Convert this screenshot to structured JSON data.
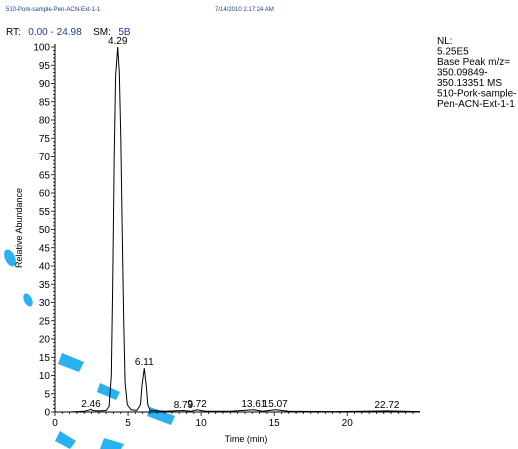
{
  "header": {
    "filename": "510-Pork-sample-Pen-ACN-Ext-1-1",
    "datetime": "7/14/2010 2:17:24 AM"
  },
  "rt_line": {
    "rt_label": "RT:",
    "rt_range": "0.00 - 24.98",
    "sm_label": "SM:",
    "sm_value": "5B"
  },
  "info_block": [
    "NL:",
    "5.25E5",
    "Base Peak m/z=",
    "350.09849-",
    "350.13351  MS",
    "510-Pork-sample-",
    "Pen-ACN-Ext-1-1"
  ],
  "colors": {
    "header_text": "#1f3b9a",
    "trace": "#000000",
    "watermark": "#14a9f0"
  },
  "chart_data": {
    "type": "line",
    "title": "",
    "xlabel": "Time (min)",
    "ylabel": "Relative Abundance",
    "xlim": [
      0,
      24.98
    ],
    "ylim": [
      0,
      100
    ],
    "x_ticks": [
      0,
      5,
      10,
      15,
      20
    ],
    "y_ticks": [
      0,
      5,
      10,
      15,
      20,
      25,
      30,
      35,
      40,
      45,
      50,
      55,
      60,
      65,
      70,
      75,
      80,
      85,
      90,
      95,
      100
    ],
    "peak_labels": [
      {
        "rt": "4.29",
        "x": 4.29,
        "y": 100
      },
      {
        "rt": "6.11",
        "x": 6.11,
        "y": 12
      },
      {
        "rt": "2.46",
        "x": 2.46,
        "y": 0.6
      },
      {
        "rt": "8.79",
        "x": 8.79,
        "y": 0.3
      },
      {
        "rt": "9.72",
        "x": 9.72,
        "y": 0.6
      },
      {
        "rt": "13.61",
        "x": 13.61,
        "y": 0.6
      },
      {
        "rt": "15.07",
        "x": 15.07,
        "y": 0.6
      },
      {
        "rt": "22.72",
        "x": 22.72,
        "y": 0.3
      }
    ],
    "series": [
      {
        "values": [
          [
            0,
            0
          ],
          [
            1.0,
            0
          ],
          [
            2.0,
            0.2
          ],
          [
            2.3,
            0.5
          ],
          [
            2.46,
            0.7
          ],
          [
            2.6,
            0.4
          ],
          [
            3.0,
            0.3
          ],
          [
            3.5,
            0.4
          ],
          [
            3.7,
            1.5
          ],
          [
            3.85,
            10
          ],
          [
            3.95,
            35
          ],
          [
            4.05,
            70
          ],
          [
            4.15,
            92
          ],
          [
            4.29,
            100
          ],
          [
            4.4,
            93
          ],
          [
            4.5,
            75
          ],
          [
            4.6,
            50
          ],
          [
            4.7,
            25
          ],
          [
            4.8,
            8
          ],
          [
            4.95,
            2
          ],
          [
            5.2,
            0.6
          ],
          [
            5.6,
            0.4
          ],
          [
            5.85,
            2
          ],
          [
            5.95,
            7
          ],
          [
            6.11,
            12
          ],
          [
            6.25,
            7
          ],
          [
            6.35,
            2
          ],
          [
            6.5,
            0.5
          ],
          [
            7.5,
            0.2
          ],
          [
            8.79,
            0.4
          ],
          [
            9.3,
            0.2
          ],
          [
            9.72,
            0.6
          ],
          [
            10.3,
            0.2
          ],
          [
            12.0,
            0.2
          ],
          [
            13.61,
            0.6
          ],
          [
            14.2,
            0.2
          ],
          [
            15.07,
            0.6
          ],
          [
            16.0,
            0.2
          ],
          [
            19.0,
            0.1
          ],
          [
            22.72,
            0.3
          ],
          [
            24.98,
            0.1
          ]
        ]
      }
    ]
  }
}
